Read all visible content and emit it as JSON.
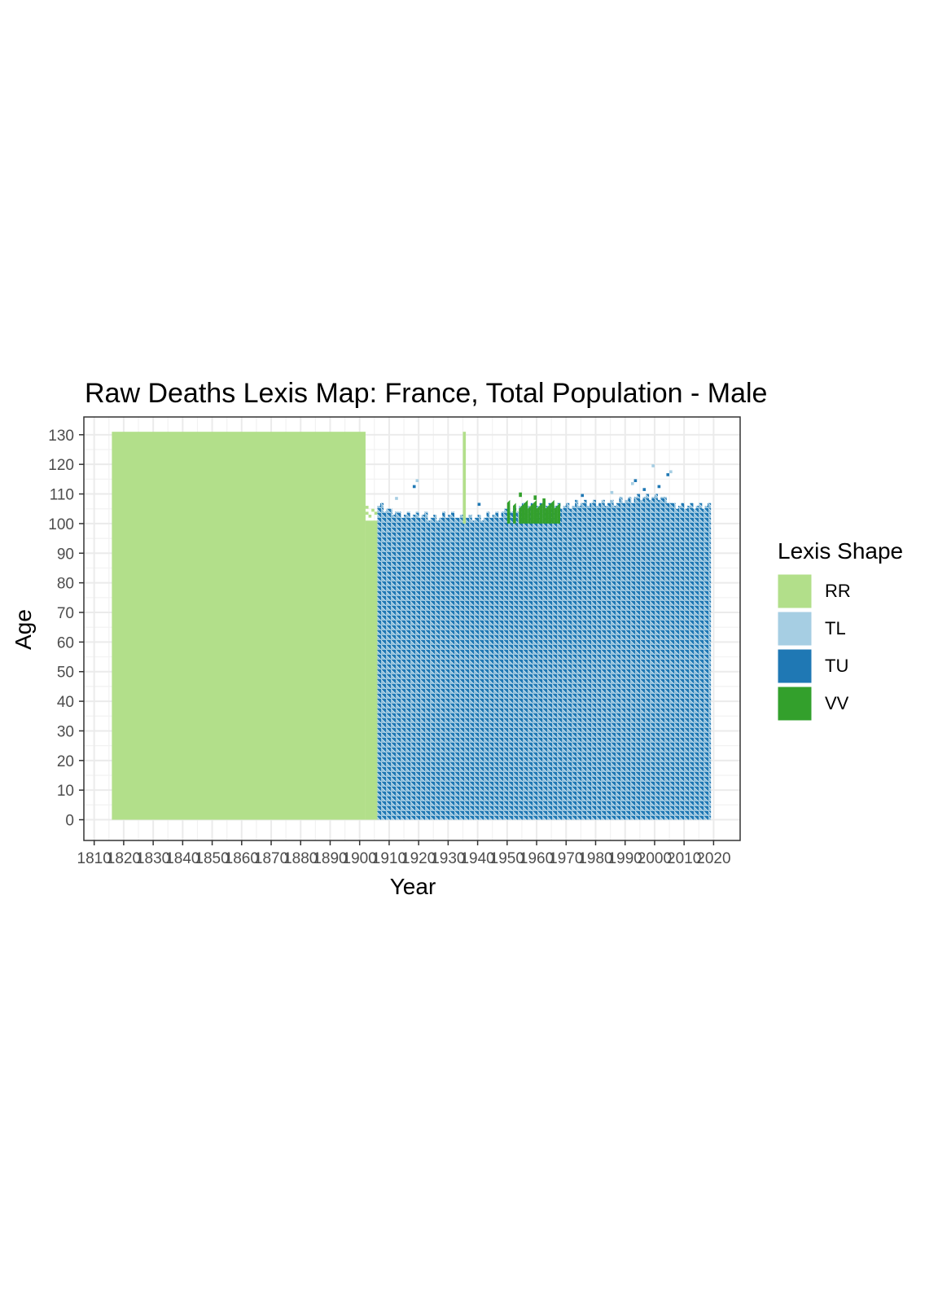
{
  "chart_data": {
    "type": "heatmap",
    "title": "Raw Deaths Lexis Map: France, Total Population - Male",
    "xlabel": "Year",
    "ylabel": "Age",
    "xlim": [
      1806.5,
      2029
    ],
    "ylim": [
      -7,
      136
    ],
    "x_ticks": [
      1810,
      1820,
      1830,
      1840,
      1850,
      1860,
      1870,
      1880,
      1890,
      1900,
      1910,
      1920,
      1930,
      1940,
      1950,
      1960,
      1970,
      1980,
      1990,
      2000,
      2010,
      2020
    ],
    "y_ticks": [
      0,
      10,
      20,
      30,
      40,
      50,
      60,
      70,
      80,
      90,
      100,
      110,
      120,
      130
    ],
    "grid": true,
    "legend": {
      "title": "Lexis Shape",
      "placement": "right",
      "entries": [
        {
          "label": "RR",
          "color": "#b2df8a"
        },
        {
          "label": "TL",
          "color": "#a6cee3"
        },
        {
          "label": "TU",
          "color": "#1f78b4"
        },
        {
          "label": "VV",
          "color": "#33a02c"
        }
      ]
    },
    "regions": [
      {
        "shape": "RR",
        "years": [
          1816,
          1902
        ],
        "ages": [
          0,
          131
        ],
        "note": "rectangular cells"
      },
      {
        "shape": "RR",
        "years": [
          1902,
          1906
        ],
        "ages": [
          0,
          106
        ]
      },
      {
        "shape": "RR",
        "years": [
          1935,
          1936
        ],
        "ages": [
          100,
          131
        ]
      },
      {
        "shape": "TL+TU",
        "years": [
          1906,
          2019
        ],
        "ages": [
          0,
          101
        ]
      },
      {
        "shape": "VV",
        "years": [
          1950,
          1968
        ],
        "ages": [
          100,
          108
        ]
      }
    ],
    "upper_edge": [
      {
        "year": 1906,
        "age": 106
      },
      {
        "year": 1910,
        "age": 104
      },
      {
        "year": 1915,
        "age": 103
      },
      {
        "year": 1920,
        "age": 103
      },
      {
        "year": 1925,
        "age": 102
      },
      {
        "year": 1930,
        "age": 103
      },
      {
        "year": 1934,
        "age": 102
      },
      {
        "year": 1940,
        "age": 102
      },
      {
        "year": 1945,
        "age": 103
      },
      {
        "year": 1950,
        "age": 104
      },
      {
        "year": 1955,
        "age": 106
      },
      {
        "year": 1960,
        "age": 106
      },
      {
        "year": 1965,
        "age": 106
      },
      {
        "year": 1970,
        "age": 106
      },
      {
        "year": 1975,
        "age": 107
      },
      {
        "year": 1980,
        "age": 107
      },
      {
        "year": 1985,
        "age": 107
      },
      {
        "year": 1990,
        "age": 108
      },
      {
        "year": 1995,
        "age": 109
      },
      {
        "year": 2000,
        "age": 109
      },
      {
        "year": 2004,
        "age": 108
      },
      {
        "year": 2006,
        "age": 106
      },
      {
        "year": 2019,
        "age": 106
      }
    ]
  }
}
